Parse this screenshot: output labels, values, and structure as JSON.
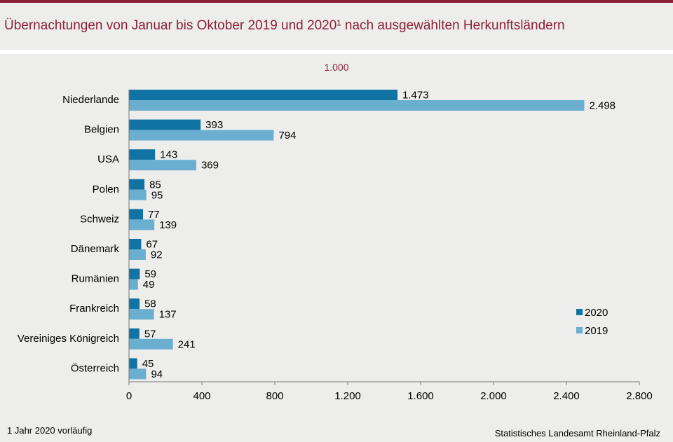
{
  "title": "Übernachtungen von Januar  bis Oktober 2019 und 2020¹ nach ausgewählten Herkunftsländern",
  "unit_label": "1.000",
  "footnote": "1 Jahr 2020 vorläufig",
  "source": "Statistisches Landesamt  Rheinland-Pfalz",
  "colors": {
    "accent": "#8c1f37",
    "series_2020": "#1173a3",
    "series_2019": "#6aafd0"
  },
  "chart_data": {
    "type": "bar",
    "orientation": "horizontal",
    "categories": [
      "Niederlande",
      "Belgien",
      "USA",
      "Polen",
      "Schweiz",
      "Dänemark",
      "Rumänien",
      "Frankreich",
      "Vereiniges Königreich",
      "Österreich"
    ],
    "series": [
      {
        "name": "2020",
        "values": [
          1473,
          393,
          143,
          85,
          77,
          67,
          59,
          58,
          57,
          45
        ],
        "labels": [
          "1.473",
          "393",
          "143",
          "85",
          "77",
          "67",
          "59",
          "58",
          "57",
          "45"
        ]
      },
      {
        "name": "2019",
        "values": [
          2498,
          794,
          369,
          95,
          139,
          92,
          49,
          137,
          241,
          94
        ],
        "labels": [
          "2.498",
          "794",
          "369",
          "95",
          "139",
          "92",
          "49",
          "137",
          "241",
          "94"
        ]
      }
    ],
    "xlim": [
      0,
      2800
    ],
    "xticks": [
      0,
      400,
      800,
      1200,
      1600,
      2000,
      2400,
      2800
    ],
    "xtick_labels": [
      "0",
      "400",
      "800",
      "1.200",
      "1.600",
      "2.000",
      "2.400",
      "2.800"
    ],
    "legend": "right"
  }
}
